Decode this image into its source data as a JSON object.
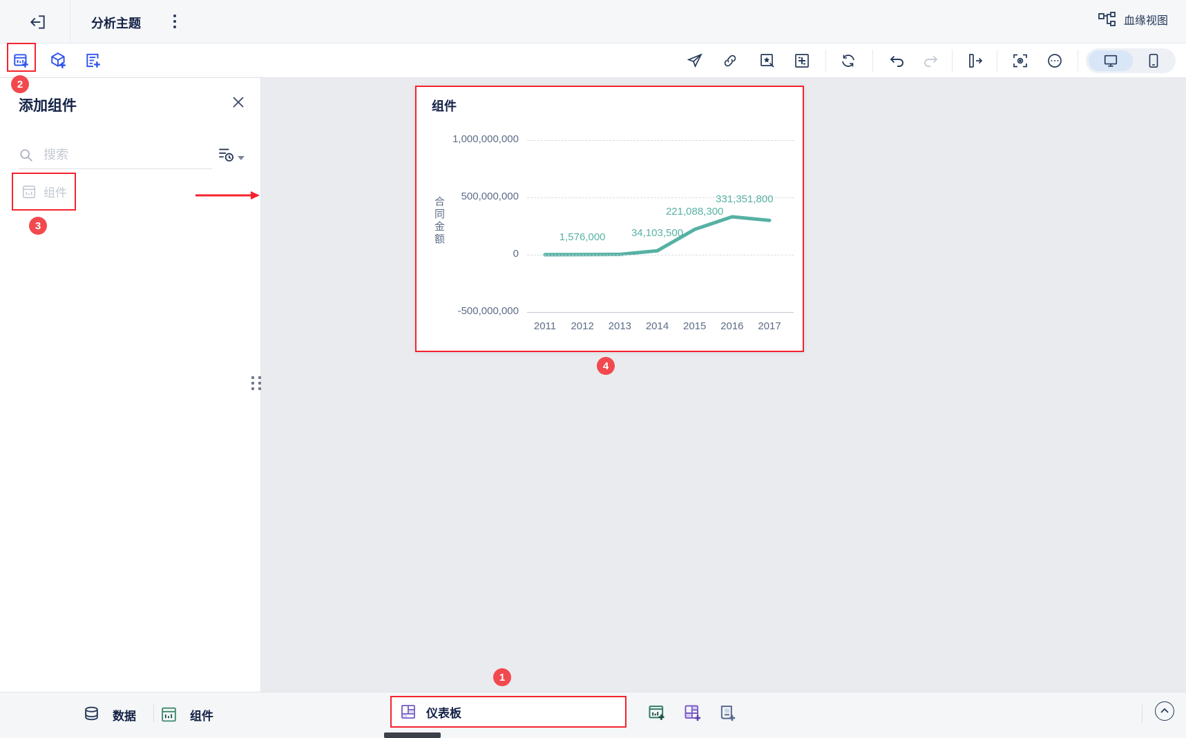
{
  "header": {
    "title": "分析主题",
    "lineage_label": "血缘视图"
  },
  "toolbar": {
    "left_icons": [
      "add-component",
      "add-dataset",
      "add-report"
    ],
    "right_icons": [
      "publish",
      "link",
      "beautify",
      "layout",
      "refresh",
      "undo",
      "redo",
      "collapse-panel",
      "preview",
      "more",
      "desktop-view",
      "mobile-view"
    ],
    "redo_disabled": true,
    "selected_device": "desktop"
  },
  "panel": {
    "title": "添加组件",
    "search_placeholder": "搜索",
    "item_component_label": "组件"
  },
  "badges": {
    "one": "1",
    "two": "2",
    "three": "3",
    "four": "4"
  },
  "chart_card": {
    "title": "组件"
  },
  "chart_data": {
    "type": "line",
    "title": "组件",
    "categories": [
      "2011",
      "2012",
      "2013",
      "2014",
      "2015",
      "2016",
      "2017"
    ],
    "series": [
      {
        "name": "合同金额",
        "values": [
          800000,
          1576000,
          3000000,
          34103500,
          221088300,
          331351800,
          300000000
        ]
      }
    ],
    "data_labels": [
      "",
      "1,576,000",
      "",
      "34,103,500",
      "221,088,300",
      "331,351,800",
      ""
    ],
    "estimated_unlabeled_indices": [
      0,
      2,
      6
    ],
    "ylabel": "合同金额",
    "xlabel": "",
    "yticks": [
      {
        "label": "1,000,000,000",
        "value": 1000000000
      },
      {
        "label": "500,000,000",
        "value": 500000000
      },
      {
        "label": "0",
        "value": 0
      },
      {
        "label": "-500,000,000",
        "value": -500000000
      }
    ],
    "ylim": [
      -500000000,
      1000000000
    ],
    "grid": "horizontal-dashed",
    "legend": "none",
    "line_color": "#56b1a4"
  },
  "bottom_bar": {
    "data_label": "数据",
    "component_label": "组件",
    "dashboard_label": "仪表板"
  },
  "colors": {
    "accent_blue": "#2f54eb",
    "annotation_red": "#f5222d",
    "line_teal": "#56b1a4",
    "navy": "#253858",
    "canvas_gray": "#e9ebef"
  }
}
